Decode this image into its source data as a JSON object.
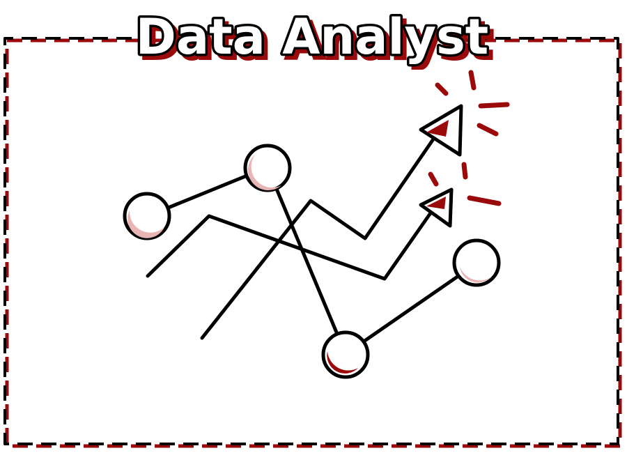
{
  "title": "Data Analyst",
  "colors": {
    "accent": "#9b0a0a",
    "ink": "#000000",
    "node_fill": "#ffffff",
    "node_tint": "#e9b4b4",
    "background": "#ffffff"
  },
  "icons": [
    "network-graph-icon",
    "trend-arrow-icon",
    "sparkle-burst-icon"
  ]
}
